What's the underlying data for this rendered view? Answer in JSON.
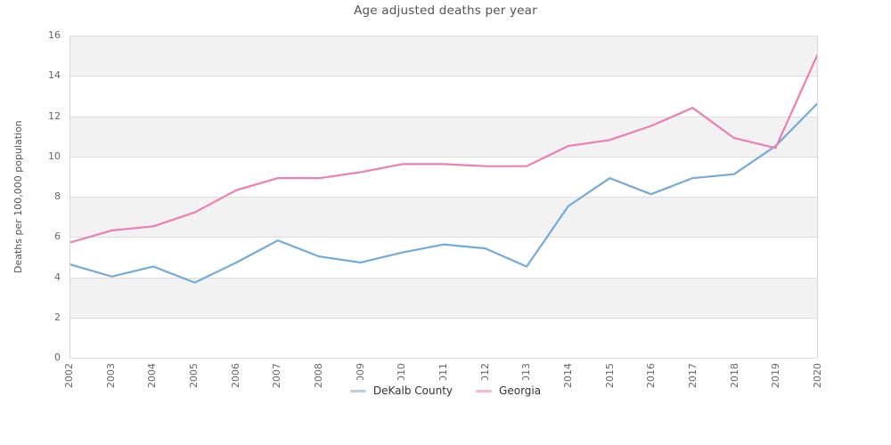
{
  "title": "Age adjusted deaths per year",
  "colors": {
    "dekalb_line": "#73aadc",
    "georgia_line": "#ee7eb1",
    "band_gray": "#f2f2f2",
    "gridline": "#dedede",
    "axis_text": "#666666",
    "title_text": "#545454",
    "legend_text": "#333333"
  },
  "legend": {
    "items": [
      {
        "label": "DeKalb County",
        "color": "#73aadc"
      },
      {
        "label": "Georgia",
        "color": "#ee7eb1"
      }
    ]
  },
  "chart_data": {
    "type": "line",
    "title": "Age adjusted deaths per year",
    "xlabel": "",
    "ylabel": "Deaths per 100,000 population",
    "ylim": [
      0,
      16
    ],
    "ytick_step": 2,
    "yticks": [
      0,
      2,
      4,
      6,
      8,
      10,
      12,
      14,
      16
    ],
    "grid": "horizontal",
    "band_fill": "alternating-gray",
    "legend_position": "bottom-center",
    "x_tick_rotation": -90,
    "categories": [
      2002,
      2003,
      2004,
      2005,
      2006,
      2007,
      2008,
      2009,
      2010,
      2011,
      2012,
      2013,
      2014,
      2015,
      2016,
      2017,
      2018,
      2019,
      2020
    ],
    "series": [
      {
        "name": "DeKalb County",
        "color": "#73aadc",
        "values": [
          4.6,
          4.0,
          4.5,
          3.7,
          4.7,
          5.8,
          5.0,
          4.7,
          5.2,
          5.6,
          5.4,
          4.5,
          7.5,
          8.9,
          8.1,
          8.9,
          9.1,
          10.5,
          12.6
        ]
      },
      {
        "name": "Georgia",
        "color": "#ee7eb1",
        "values": [
          5.7,
          6.3,
          6.5,
          7.2,
          8.3,
          8.9,
          8.9,
          9.2,
          9.6,
          9.6,
          9.5,
          9.5,
          10.5,
          10.8,
          11.5,
          12.4,
          10.9,
          10.4,
          15.0
        ]
      }
    ]
  }
}
